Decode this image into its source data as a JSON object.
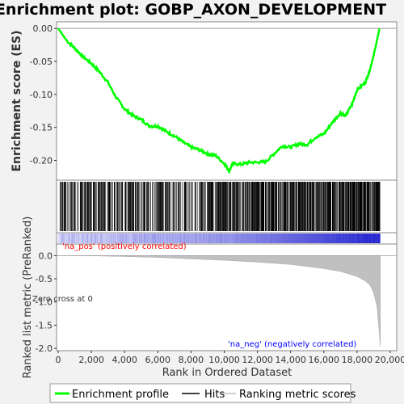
{
  "title": "Enrichment plot: GOBP_AXON_DEVELOPMENT",
  "colors": {
    "es_line": "#00ff00",
    "hits": "#000000",
    "metric_fill": "#c0c0c0",
    "pos_label": "#ff0000",
    "neg_label": "#0000ff",
    "band_pos": "#d8d8f8",
    "band_neg": "#2020d0"
  },
  "legend": {
    "enrichment": "Enrichment profile",
    "hits": "Hits",
    "ranking": "Ranking metric scores"
  },
  "annotations": {
    "pos": "'na_pos' (positively correlated)",
    "neg": "'na_neg' (negatively correlated)",
    "zero_cross": "Zero cross at 0"
  },
  "chart_data": {
    "type": "line",
    "title": "Enrichment plot: GOBP_AXON_DEVELOPMENT",
    "xlabel": "Rank in Ordered Dataset",
    "ylabel_es": "Enrichment score (ES)",
    "ylabel_metric": "Ranked list metric (PreRanked)",
    "xlim": [
      0,
      20000
    ],
    "x_ticks": [
      "0",
      "2,000",
      "4,000",
      "6,000",
      "8,000",
      "10,000",
      "12,000",
      "14,000",
      "16,000",
      "18,000",
      "20,000"
    ],
    "es_ylim": [
      -0.23,
      0.01
    ],
    "es_ticks": [
      "0.00",
      "-0.05",
      "-0.10",
      "-0.15",
      "-0.20"
    ],
    "metric_ylim": [
      -2.05,
      0.25
    ],
    "metric_ticks": [
      "0.0",
      "-0.5",
      "-1.0",
      "-1.5",
      "-2.0"
    ],
    "es_profile": {
      "x": [
        0,
        500,
        1000,
        1500,
        2000,
        2500,
        3000,
        3500,
        4000,
        4500,
        5000,
        5500,
        6000,
        6500,
        7000,
        7500,
        8000,
        8500,
        9000,
        9500,
        10000,
        10300,
        10500,
        11000,
        11500,
        12000,
        12500,
        13000,
        13500,
        14000,
        14500,
        15000,
        15500,
        16000,
        16500,
        17000,
        17300,
        17700,
        18000,
        18500,
        18800,
        19100,
        19350
      ],
      "y": [
        0.0,
        -0.018,
        -0.03,
        -0.043,
        -0.053,
        -0.066,
        -0.082,
        -0.105,
        -0.122,
        -0.132,
        -0.138,
        -0.148,
        -0.148,
        -0.156,
        -0.163,
        -0.172,
        -0.18,
        -0.184,
        -0.19,
        -0.193,
        -0.205,
        -0.216,
        -0.205,
        -0.206,
        -0.203,
        -0.203,
        -0.202,
        -0.19,
        -0.178,
        -0.18,
        -0.175,
        -0.176,
        -0.165,
        -0.16,
        -0.143,
        -0.128,
        -0.133,
        -0.115,
        -0.093,
        -0.082,
        -0.06,
        -0.03,
        0.0
      ]
    },
    "hits_summary": "Dense vertical hit marks spread across the whole ranked list (~0–19,400), densest in the right half.",
    "metric": {
      "x": [
        0,
        2000,
        4000,
        6000,
        8000,
        10000,
        12000,
        14000,
        16000,
        17000,
        18000,
        18500,
        18800,
        19000,
        19200,
        19300,
        19400
      ],
      "y": [
        0.0,
        -0.005,
        -0.02,
        -0.04,
        -0.07,
        -0.1,
        -0.14,
        -0.19,
        -0.28,
        -0.34,
        -0.45,
        -0.55,
        -0.65,
        -0.8,
        -1.1,
        -1.5,
        -1.95
      ]
    },
    "zero_cross_rank": 0
  }
}
